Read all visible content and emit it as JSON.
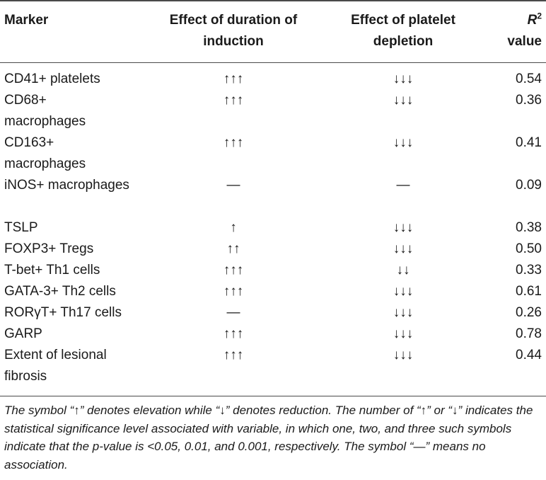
{
  "header": {
    "marker": "Marker",
    "duration": "Effect of duration of induction",
    "depletion": "Effect of platelet depletion",
    "r2_symbol": "R",
    "r2_sup": "2",
    "r2_value": "value"
  },
  "rows": [
    {
      "marker": "CD41+ platelets",
      "duration": "↑↑↑",
      "depletion": "↓↓↓",
      "r2": "0.54"
    },
    {
      "marker": "CD68+ macrophages",
      "duration": "↑↑↑",
      "depletion": "↓↓↓",
      "r2": "0.36"
    },
    {
      "marker": "CD163+ macrophages",
      "duration": "↑↑↑",
      "depletion": "↓↓↓",
      "r2": "0.41"
    },
    {
      "marker": "iNOS+ macrophages",
      "duration": "—",
      "depletion": "—",
      "r2": "0.09"
    },
    {
      "marker": "TSLP",
      "duration": "↑",
      "depletion": "↓↓↓",
      "r2": "0.38"
    },
    {
      "marker": "FOXP3+ Tregs",
      "duration": "↑↑",
      "depletion": "↓↓↓",
      "r2": "0.50"
    },
    {
      "marker": "T-bet+ Th1 cells",
      "duration": "↑↑↑",
      "depletion": "↓↓",
      "r2": "0.33"
    },
    {
      "marker": "GATA-3+ Th2 cells",
      "duration": "↑↑↑",
      "depletion": "↓↓↓",
      "r2": "0.61"
    },
    {
      "marker": "RORγT+ Th17 cells",
      "duration": "—",
      "depletion": "↓↓↓",
      "r2": "0.26"
    },
    {
      "marker": "GARP",
      "duration": "↑↑↑",
      "depletion": "↓↓↓",
      "r2": "0.78"
    },
    {
      "marker": "Extent of lesional fibrosis",
      "duration": "↑↑↑",
      "depletion": "↓↓↓",
      "r2": "0.44"
    }
  ],
  "footnote": "The symbol “↑” denotes elevation while “↓” denotes reduction. The number of “↑” or “↓” indicates the statistical significance level associated with variable, in which one, two, and three such symbols indicate that the p-value is <0.05, 0.01, and 0.001, respectively. The symbol “—” means no association."
}
